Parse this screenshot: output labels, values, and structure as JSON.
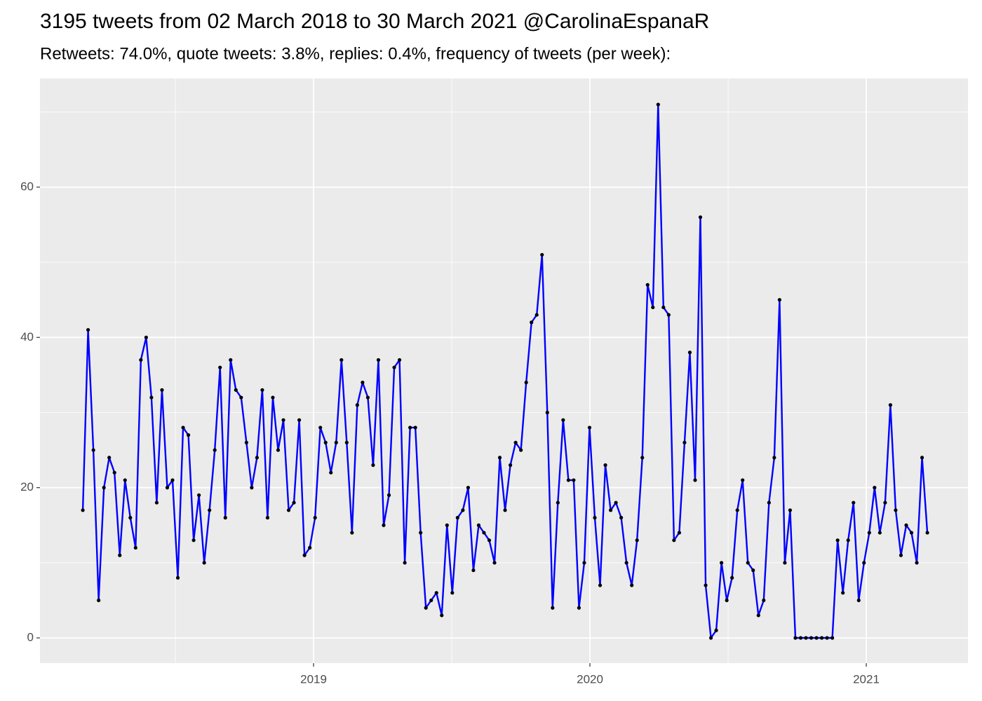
{
  "chart_data": {
    "type": "line",
    "title": "3195 tweets from 02 March 2018 to 30 March 2021 @CarolinaEspanaR",
    "subtitle": "Retweets: 74.0%, quote tweets: 3.8%, replies: 0.4%, frequency of tweets (per week):",
    "color": "#0000ff",
    "point_color": "#000000",
    "grid": true,
    "xlim": [
      2018.01,
      2021.368
    ],
    "xticks": [
      2019,
      2020,
      2021
    ],
    "minor_xticks": [
      2018.5,
      2019.5,
      2020.5
    ],
    "ylim": [
      -3.36,
      74.46
    ],
    "yticks": [
      0,
      20,
      40,
      60
    ],
    "minor_yticks": [
      10,
      30,
      50,
      70
    ],
    "x": [
      2018.165,
      2018.1841,
      2018.2032,
      2018.2223,
      2018.2414,
      2018.2605,
      2018.2796,
      2018.2987,
      2018.3178,
      2018.3369,
      2018.356,
      2018.3751,
      2018.3942,
      2018.4133,
      2018.4324,
      2018.4515,
      2018.4706,
      2018.4897,
      2018.5088,
      2018.5279,
      2018.547,
      2018.5661,
      2018.5852,
      2018.6043,
      2018.6234,
      2018.6425,
      2018.6616,
      2018.6807,
      2018.6998,
      2018.7189,
      2018.738,
      2018.7571,
      2018.7762,
      2018.7953,
      2018.8144,
      2018.8335,
      2018.8526,
      2018.8717,
      2018.8908,
      2018.9099,
      2018.929,
      2018.9481,
      2018.9672,
      2018.9863,
      2019.0054,
      2019.0245,
      2019.0436,
      2019.0627,
      2019.0818,
      2019.1009,
      2019.12,
      2019.1391,
      2019.1582,
      2019.1773,
      2019.1964,
      2019.2155,
      2019.2346,
      2019.2537,
      2019.2728,
      2019.2919,
      2019.311,
      2019.3301,
      2019.3492,
      2019.3683,
      2019.3874,
      2019.4065,
      2019.4256,
      2019.4447,
      2019.4638,
      2019.4829,
      2019.502,
      2019.5211,
      2019.5402,
      2019.5593,
      2019.5784,
      2019.5975,
      2019.6166,
      2019.6357,
      2019.6548,
      2019.6739,
      2019.693,
      2019.7121,
      2019.7312,
      2019.7503,
      2019.7694,
      2019.7885,
      2019.8076,
      2019.8267,
      2019.8458,
      2019.8649,
      2019.884,
      2019.9031,
      2019.9222,
      2019.9413,
      2019.9604,
      2019.9795,
      2019.9986,
      2020.0177,
      2020.0368,
      2020.0559,
      2020.075,
      2020.0941,
      2020.1132,
      2020.1323,
      2020.1514,
      2020.1705,
      2020.1896,
      2020.2087,
      2020.2278,
      2020.2469,
      2020.266,
      2020.2851,
      2020.3042,
      2020.3233,
      2020.3424,
      2020.3615,
      2020.3806,
      2020.3997,
      2020.4188,
      2020.4379,
      2020.457,
      2020.4761,
      2020.4952,
      2020.5143,
      2020.5334,
      2020.5525,
      2020.5716,
      2020.5907,
      2020.6098,
      2020.6289,
      2020.648,
      2020.6671,
      2020.6862,
      2020.7053,
      2020.7244,
      2020.7435,
      2020.7626,
      2020.7817,
      2020.8008,
      2020.8199,
      2020.839,
      2020.8581,
      2020.8772,
      2020.8963,
      2020.9154,
      2020.9345,
      2020.9536,
      2020.9727,
      2020.9918,
      2021.0109,
      2021.03,
      2021.0491,
      2021.0682,
      2021.0873,
      2021.1064,
      2021.1255,
      2021.1446,
      2021.1637,
      2021.1828,
      2021.2019,
      2021.221
    ],
    "values": [
      17,
      41,
      25,
      5,
      20,
      24,
      22,
      11,
      21,
      16,
      12,
      37,
      40,
      32,
      18,
      33,
      20,
      21,
      8,
      28,
      27,
      13,
      19,
      10,
      17,
      25,
      36,
      16,
      37,
      33,
      32,
      26,
      20,
      24,
      33,
      16,
      32,
      25,
      29,
      17,
      18,
      29,
      11,
      12,
      16,
      28,
      26,
      22,
      26,
      37,
      26,
      14,
      31,
      34,
      32,
      23,
      37,
      15,
      19,
      36,
      37,
      10,
      28,
      28,
      14,
      4,
      5,
      6,
      3,
      15,
      6,
      16,
      17,
      20,
      9,
      15,
      14,
      13,
      10,
      24,
      17,
      23,
      26,
      25,
      34,
      42,
      43,
      51,
      30,
      4,
      18,
      29,
      21,
      21,
      4,
      10,
      28,
      16,
      7,
      23,
      17,
      18,
      16,
      10,
      7,
      13,
      24,
      47,
      44,
      71,
      44,
      43,
      13,
      14,
      26,
      38,
      21,
      56,
      7,
      0,
      1,
      10,
      5,
      8,
      17,
      21,
      10,
      9,
      3,
      5,
      18,
      24,
      45,
      10,
      17,
      0,
      0,
      0,
      0,
      0,
      0,
      0,
      0,
      13,
      6,
      13,
      18,
      5,
      10,
      14,
      20,
      14,
      18,
      31,
      17,
      11,
      15,
      14,
      10,
      24,
      14
    ]
  }
}
